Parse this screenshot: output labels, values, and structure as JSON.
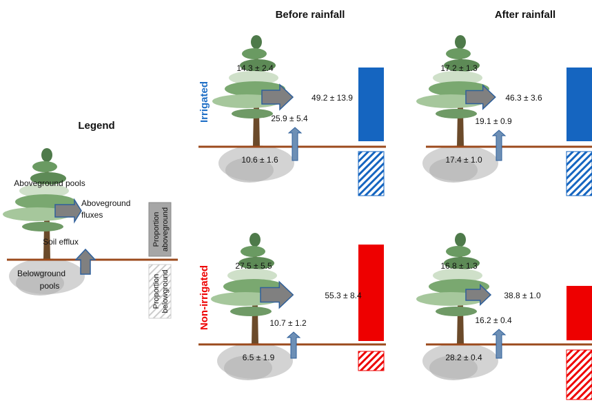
{
  "columns": [
    "Before rainfall",
    "After rainfall"
  ],
  "rows": [
    "Irrigated",
    "Non-irrigated"
  ],
  "legend": {
    "title": "Legend",
    "aboveground_pools": "Aboveground pools",
    "aboveground_fluxes": [
      "Aboveground",
      "fluxes"
    ],
    "soil_efflux": "Soil efflux",
    "belowground_pools": [
      "Belowground",
      "pools"
    ],
    "proportion_aboveground": [
      "Proportion",
      "aboveground"
    ],
    "proportion_belowground": [
      "Proportion",
      "belowground"
    ]
  },
  "panels": [
    {
      "aboveground_pool": "14.3 ± 2.4",
      "aboveground_flux": "49.2 ± 13.9",
      "soil_efflux": "25.9 ± 5.4",
      "belowground_pool": "10.6 ± 1.6"
    },
    {
      "aboveground_pool": "17.2 ± 1.3",
      "aboveground_flux": "46.3 ± 3.6",
      "soil_efflux": "19.1 ± 0.9",
      "belowground_pool": "17.4 ± 1.0"
    },
    {
      "aboveground_pool": "27.5 ± 5.5",
      "aboveground_flux": "55.3 ± 8.4",
      "soil_efflux": "10.7 ± 1.2",
      "belowground_pool": "6.5 ± 1.9"
    },
    {
      "aboveground_pool": "16.8 ± 1.3",
      "aboveground_flux": "38.8 ± 1.0",
      "soil_efflux": "16.2 ± 0.4",
      "belowground_pool": "28.2 ± 0.4"
    }
  ]
}
